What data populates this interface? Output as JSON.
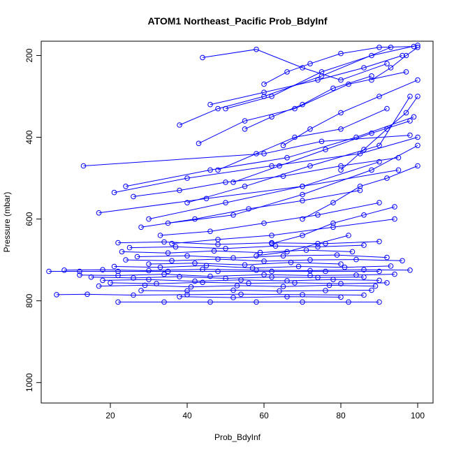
{
  "chart_data": {
    "type": "scatter",
    "title": "ATOM1 Northeast_Pacific Prob_BdyInf",
    "xlabel": "Prob_BdyInf",
    "ylabel": "Pressure (mbar)",
    "xlim": [
      2,
      104
    ],
    "ylim": [
      1050,
      165
    ],
    "y_reversed": true,
    "x_ticks": [
      "20",
      "40",
      "60",
      "80",
      "100"
    ],
    "y_ticks": [
      "200",
      "400",
      "600",
      "800",
      "1000"
    ],
    "color": "#0000ff",
    "grid": false,
    "series": [
      {
        "x": [
          13,
          60,
          75,
          98
        ],
        "y": [
          470,
          440,
          410,
          395
        ]
      },
      {
        "x": [
          17,
          45,
          70,
          95
        ],
        "y": [
          585,
          550,
          520,
          480
        ]
      },
      {
        "x": [
          21,
          40,
          62,
          85,
          100
        ],
        "y": [
          535,
          500,
          470,
          440,
          400
        ]
      },
      {
        "x": [
          24,
          46,
          66,
          84,
          99
        ],
        "y": [
          520,
          480,
          450,
          400,
          350
        ]
      },
      {
        "x": [
          30,
          50,
          70,
          90
        ],
        "y": [
          600,
          560,
          520,
          460
        ]
      },
      {
        "x": [
          35,
          52,
          70,
          88,
          100
        ],
        "y": [
          610,
          590,
          540,
          480,
          420
        ]
      },
      {
        "x": [
          40,
          55,
          72,
          90,
          98
        ],
        "y": [
          560,
          520,
          470,
          420,
          300
        ]
      },
      {
        "x": [
          46,
          60,
          74,
          86,
          96
        ],
        "y": [
          320,
          290,
          260,
          230,
          200
        ]
      },
      {
        "x": [
          38,
          48,
          60,
          75,
          93
        ],
        "y": [
          370,
          330,
          300,
          250,
          180
        ]
      },
      {
        "x": [
          43,
          55,
          68,
          82,
          97
        ],
        "y": [
          415,
          360,
          330,
          270,
          240
        ]
      },
      {
        "x": [
          50,
          62,
          75,
          88,
          100
        ],
        "y": [
          330,
          300,
          240,
          200,
          175
        ]
      },
      {
        "x": [
          44,
          58,
          70,
          80,
          92
        ],
        "y": [
          205,
          185,
          230,
          260,
          220
        ]
      },
      {
        "x": [
          60,
          66,
          72,
          80,
          90,
          99
        ],
        "y": [
          270,
          240,
          220,
          195,
          180,
          178
        ]
      },
      {
        "x": [
          55,
          62,
          70,
          78,
          88
        ],
        "y": [
          380,
          350,
          320,
          280,
          250
        ]
      },
      {
        "x": [
          65,
          72,
          80,
          90,
          100
        ],
        "y": [
          420,
          380,
          340,
          300,
          260
        ]
      },
      {
        "x": [
          48,
          58,
          68,
          80,
          92
        ],
        "y": [
          480,
          440,
          400,
          380,
          330
        ]
      },
      {
        "x": [
          52,
          64,
          76,
          88,
          98
        ],
        "y": [
          510,
          470,
          430,
          390,
          360
        ]
      },
      {
        "x": [
          26,
          38,
          50,
          65,
          80,
          95
        ],
        "y": [
          545,
          530,
          510,
          495,
          470,
          450
        ]
      },
      {
        "x": [
          28,
          42,
          56,
          70,
          85
        ],
        "y": [
          620,
          600,
          575,
          555,
          530
        ]
      },
      {
        "x": [
          33,
          46,
          60,
          74,
          90
        ],
        "y": [
          640,
          630,
          610,
          590,
          560
        ]
      },
      {
        "x": [
          36,
          48,
          62,
          78,
          94
        ],
        "y": [
          660,
          650,
          640,
          620,
          600
        ]
      },
      {
        "x": [
          22,
          34,
          48,
          62,
          76,
          90
        ],
        "y": [
          658,
          656,
          662,
          658,
          660,
          655
        ]
      },
      {
        "x": [
          25,
          37,
          50,
          63,
          74,
          86
        ],
        "y": [
          670,
          668,
          672,
          666,
          668,
          664
        ]
      },
      {
        "x": [
          23,
          35,
          47,
          59,
          71,
          83
        ],
        "y": [
          680,
          683,
          678,
          682,
          676,
          680
        ]
      },
      {
        "x": [
          27,
          40,
          52,
          65,
          79,
          92
        ],
        "y": [
          692,
          690,
          695,
          690,
          688,
          694
        ]
      },
      {
        "x": [
          24,
          36,
          48,
          60,
          72,
          84,
          96
        ],
        "y": [
          700,
          702,
          698,
          703,
          700,
          699,
          702
        ]
      },
      {
        "x": [
          30,
          42,
          55,
          67,
          80
        ],
        "y": [
          710,
          708,
          712,
          706,
          710
        ]
      },
      {
        "x": [
          21,
          33,
          45,
          57,
          69,
          81,
          93
        ],
        "y": [
          716,
          718,
          714,
          720,
          716,
          718,
          715
        ]
      },
      {
        "x": [
          4,
          12,
          22,
          35,
          48,
          62,
          76,
          90
        ],
        "y": [
          728,
          728,
          728,
          728,
          728,
          728,
          728,
          728
        ]
      },
      {
        "x": [
          8,
          18,
          30,
          44,
          58,
          72,
          86,
          98
        ],
        "y": [
          725,
          724,
          726,
          723,
          725,
          726,
          724,
          725
        ]
      },
      {
        "x": [
          12,
          22,
          34,
          46,
          60,
          72,
          84,
          94
        ],
        "y": [
          737,
          738,
          735,
          740,
          736,
          738,
          737,
          735
        ]
      },
      {
        "x": [
          15,
          26,
          38,
          50,
          62,
          74,
          86
        ],
        "y": [
          742,
          744,
          741,
          745,
          742,
          743,
          742
        ]
      },
      {
        "x": [
          18,
          30,
          42,
          54,
          66,
          78,
          90
        ],
        "y": [
          750,
          748,
          752,
          749,
          751,
          748,
          750
        ]
      },
      {
        "x": [
          20,
          32,
          44,
          56,
          68,
          80,
          92
        ],
        "y": [
          756,
          758,
          755,
          757,
          756,
          758,
          756
        ]
      },
      {
        "x": [
          17,
          29,
          41,
          53,
          65,
          77,
          89
        ],
        "y": [
          764,
          762,
          766,
          763,
          765,
          762,
          764
        ]
      },
      {
        "x": [
          6,
          14,
          26,
          40,
          54,
          70,
          86
        ],
        "y": [
          785,
          784,
          786,
          785,
          784,
          785,
          786
        ]
      },
      {
        "x": [
          28,
          40,
          52,
          64,
          76,
          88
        ],
        "y": [
          775,
          776,
          774,
          776,
          775,
          774
        ]
      },
      {
        "x": [
          22,
          34,
          46,
          58,
          70,
          82,
          90
        ],
        "y": [
          803,
          803,
          803,
          803,
          803,
          803,
          803
        ]
      },
      {
        "x": [
          38,
          52,
          66,
          80
        ],
        "y": [
          790,
          792,
          790,
          791
        ]
      },
      {
        "x": [
          62,
          70,
          78,
          86,
          94
        ],
        "y": [
          660,
          640,
          610,
          590,
          570
        ]
      },
      {
        "x": [
          70,
          78,
          85,
          92,
          100
        ],
        "y": [
          600,
          560,
          520,
          500,
          470
        ]
      },
      {
        "x": [
          58,
          66,
          74,
          82
        ],
        "y": [
          690,
          680,
          660,
          640
        ]
      },
      {
        "x": [
          80,
          86,
          92,
          97,
          100
        ],
        "y": [
          480,
          430,
          380,
          340,
          300
        ]
      },
      {
        "x": [
          88,
          93,
          97,
          100
        ],
        "y": [
          260,
          230,
          200,
          180
        ]
      }
    ]
  }
}
